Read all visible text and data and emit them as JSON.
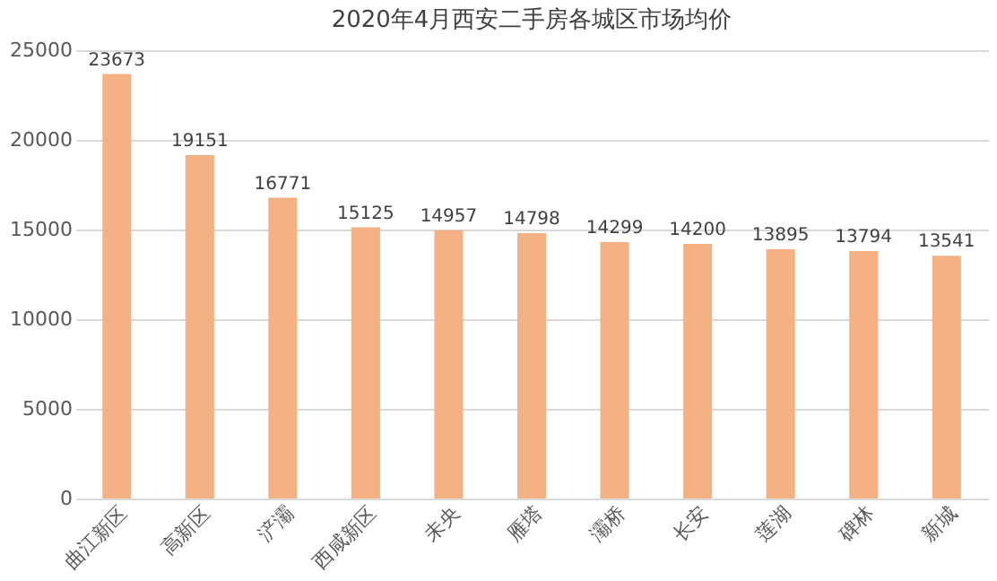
{
  "chart_data": {
    "type": "bar",
    "title": "2020年4月西安二手房各城区市场均价",
    "categories": [
      "曲江新区",
      "高新区",
      "浐灞",
      "西咸新区",
      "未央",
      "雁塔",
      "灞桥",
      "长安",
      "莲湖",
      "碑林",
      "新城"
    ],
    "values": [
      23673,
      19151,
      16771,
      15125,
      14957,
      14798,
      14299,
      14200,
      13895,
      13794,
      13541
    ],
    "color": "#f4b183",
    "data_labels": true,
    "ylim": [
      0,
      25000
    ],
    "yticks": [
      0,
      5000,
      10000,
      15000,
      20000,
      25000
    ],
    "grid": "y"
  }
}
